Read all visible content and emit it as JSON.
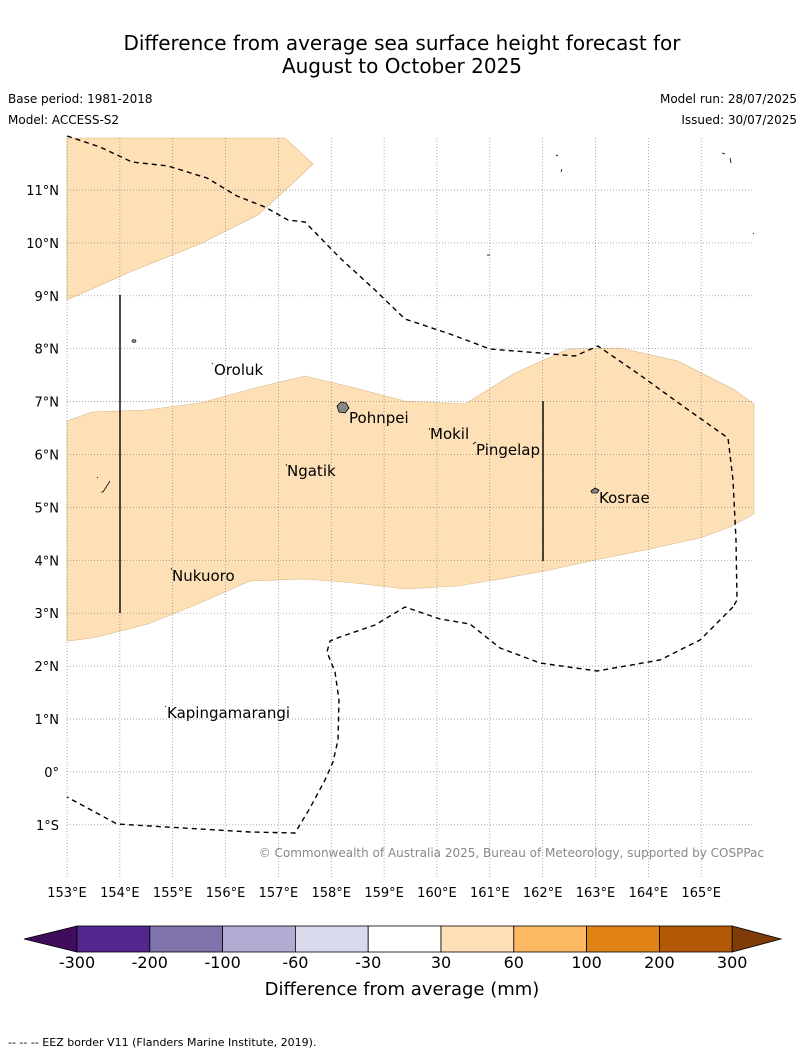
{
  "header": {
    "title_line1": "Difference from average sea surface height forecast for",
    "title_line2": "August to October 2025",
    "base_period": "Base period: 1981-2018",
    "model": "Model: ACCESS-S2",
    "model_run": "Model run: 28/07/2025",
    "issued": "Issued: 30/07/2025"
  },
  "map": {
    "lat_labels": [
      "11°N",
      "10°N",
      "9°N",
      "8°N",
      "7°N",
      "6°N",
      "5°N",
      "4°N",
      "3°N",
      "2°N",
      "1°N",
      "0°",
      "1°S"
    ],
    "lon_labels": [
      "153°E",
      "154°E",
      "155°E",
      "156°E",
      "157°E",
      "158°E",
      "159°E",
      "160°E",
      "161°E",
      "162°E",
      "163°E",
      "164°E",
      "165°E"
    ],
    "places": [
      "Oroluk",
      "Pohnpei",
      "Mokil",
      "Pingelap",
      "Ngatik",
      "Kosrae",
      "Nukuoro",
      "Kapingamarangi"
    ],
    "copyright": "© Commonwealth of Australia 2025, Bureau of Meteorology, supported by COSPPac",
    "colors": {
      "anomaly_30_60": "#fde0b6",
      "land": "#888888",
      "grid": "#888888"
    }
  },
  "colorbar": {
    "title": "Difference from average (mm)",
    "tick_labels": [
      "-300",
      "-200",
      "-100",
      "-60",
      "-30",
      "30",
      "60",
      "100",
      "200",
      "300"
    ],
    "colors": [
      "#3f0d5c",
      "#54278f",
      "#8073ac",
      "#b2abd2",
      "#d8daeb",
      "#ffffff",
      "#fee0b6",
      "#fdb863",
      "#e08214",
      "#b35806",
      "#7f3b08"
    ]
  },
  "footnote": "--  --  -- EEZ border V11 (Flanders Marine Institute, 2019)."
}
